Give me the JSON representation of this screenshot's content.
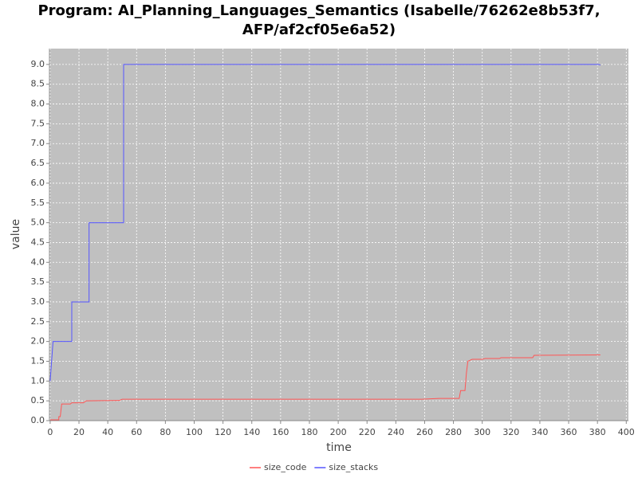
{
  "chart_data": {
    "type": "line",
    "title": [
      "Program: AI_Planning_Languages_Semantics (Isabelle/76262e8b53f7,",
      "AFP/af2cf05e6a52)"
    ],
    "x_label": "time",
    "y_label": "value",
    "xlim": [
      -0.5,
      401.5
    ],
    "ylim": [
      0,
      9.4
    ],
    "xticks": [
      0,
      20,
      40,
      60,
      80,
      100,
      120,
      140,
      160,
      180,
      200,
      220,
      240,
      260,
      280,
      300,
      320,
      340,
      360,
      380,
      400
    ],
    "yticks": [
      {
        "value": 0,
        "label": "0.0"
      },
      0.5,
      {
        "value": 1,
        "label": "1.0"
      },
      1.5,
      {
        "value": 2,
        "label": "2.0"
      },
      2.5,
      {
        "value": 3,
        "label": "3.0"
      },
      3.5,
      {
        "value": 4,
        "label": "4.0"
      },
      4.5,
      {
        "value": 5,
        "label": "5.0"
      },
      5.5,
      {
        "value": 6,
        "label": "6.0"
      },
      6.5,
      {
        "value": 7,
        "label": "7.0"
      },
      7.5,
      {
        "value": 8,
        "label": "8.0"
      },
      8.5,
      {
        "value": 9,
        "label": "9.0"
      }
    ],
    "grid": true,
    "legend": "bottom",
    "series": [
      {
        "name": "size_code",
        "color": "#ff5555",
        "x": [
          0,
          6,
          6,
          7,
          8,
          14,
          15,
          23,
          25,
          48,
          50,
          258,
          270,
          284,
          285,
          288,
          289,
          290,
          293,
          300,
          302,
          312,
          313,
          335,
          336,
          382
        ],
        "values": [
          0.02,
          0.02,
          0.1,
          0.1,
          0.42,
          0.42,
          0.45,
          0.45,
          0.5,
          0.51,
          0.54,
          0.54,
          0.56,
          0.56,
          0.76,
          0.76,
          1.2,
          1.5,
          1.55,
          1.55,
          1.57,
          1.57,
          1.59,
          1.59,
          1.65,
          1.66
        ]
      },
      {
        "name": "size_stacks",
        "color": "#5555ff",
        "x": [
          0,
          1,
          2,
          15,
          15,
          27,
          27,
          51,
          51,
          381,
          382
        ],
        "values": [
          1.0,
          1.5,
          2.0,
          2.0,
          3.0,
          3.0,
          5.0,
          5.0,
          9.0,
          9.0,
          8.98
        ]
      }
    ]
  }
}
